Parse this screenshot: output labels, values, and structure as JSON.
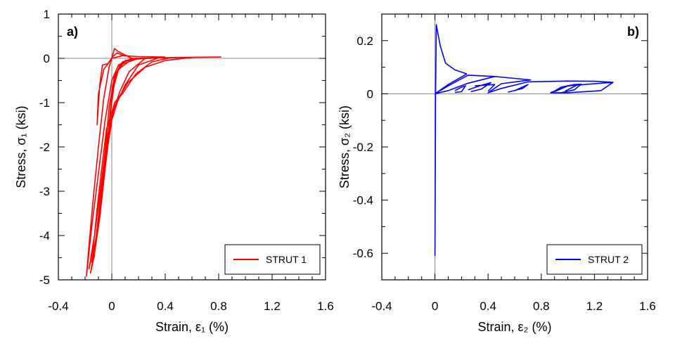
{
  "chart_data": [
    {
      "type": "line",
      "panel_label": "a)",
      "xlabel": "Strain, ε₁ (%)",
      "ylabel": "Stress, σ₁ (ksi)",
      "xlim": [
        -0.4,
        1.6
      ],
      "ylim": [
        -5,
        1
      ],
      "x_ticks": [
        -0.4,
        0,
        0.4,
        0.8,
        1.2,
        1.6
      ],
      "x_tick_labels": [
        "-0.4",
        "0",
        "0.4",
        "0.8",
        "1.2",
        "1.6"
      ],
      "y_ticks": [
        -5,
        -4,
        -3,
        -2,
        -1,
        0,
        1
      ],
      "y_tick_labels": [
        "-5",
        "-4",
        "-3",
        "-2",
        "-1",
        "0",
        "1"
      ],
      "zero_lines": true,
      "legend_position": "bottom-right",
      "series": [
        {
          "name": "STRUT 1",
          "color": "#ff0000",
          "paths": [
            [
              [
                0.82,
                0.03
              ],
              [
                0.5,
                0.02
              ],
              [
                0.3,
                0.01
              ],
              [
                0.15,
                0.0
              ],
              [
                0.05,
                0.15
              ],
              [
                0.02,
                0.22
              ],
              [
                -0.02,
                -0.2
              ],
              [
                -0.06,
                -0.9
              ],
              [
                -0.1,
                -2.0
              ],
              [
                -0.14,
                -3.2
              ],
              [
                -0.17,
                -4.2
              ],
              [
                -0.19,
                -4.92
              ],
              [
                -0.15,
                -3.8
              ],
              [
                -0.1,
                -2.6
              ],
              [
                -0.05,
                -1.4
              ],
              [
                0.0,
                -0.5
              ],
              [
                0.05,
                -0.15
              ],
              [
                0.15,
                0.0
              ],
              [
                0.3,
                0.01
              ]
            ],
            [
              [
                0.6,
                0.02
              ],
              [
                0.4,
                -0.05
              ],
              [
                0.25,
                -0.2
              ],
              [
                0.12,
                -0.55
              ],
              [
                0.05,
                -0.9
              ],
              [
                0.0,
                -1.2
              ],
              [
                -0.04,
                -1.6
              ],
              [
                -0.08,
                -2.6
              ],
              [
                -0.11,
                -3.4
              ],
              [
                -0.14,
                -4.3
              ],
              [
                -0.17,
                -4.75
              ],
              [
                -0.13,
                -4.0
              ],
              [
                -0.09,
                -3.1
              ],
              [
                -0.05,
                -2.1
              ],
              [
                -0.02,
                -1.1
              ],
              [
                0.02,
                -0.4
              ],
              [
                0.08,
                -0.08
              ],
              [
                0.2,
                0.0
              ]
            ],
            [
              [
                0.45,
                0.02
              ],
              [
                0.3,
                -0.08
              ],
              [
                0.18,
                -0.35
              ],
              [
                0.08,
                -0.8
              ],
              [
                0.02,
                -1.0
              ],
              [
                -0.03,
                -1.7
              ],
              [
                -0.07,
                -2.7
              ],
              [
                -0.1,
                -3.6
              ],
              [
                -0.13,
                -4.45
              ],
              [
                -0.16,
                -4.85
              ],
              [
                -0.12,
                -4.2
              ],
              [
                -0.08,
                -3.3
              ],
              [
                -0.04,
                -2.2
              ],
              [
                -0.01,
                -1.2
              ],
              [
                0.03,
                -0.35
              ],
              [
                0.1,
                -0.05
              ],
              [
                0.25,
                0.01
              ]
            ],
            [
              [
                0.35,
                0.01
              ],
              [
                0.2,
                -0.15
              ],
              [
                0.1,
                -0.6
              ],
              [
                0.04,
                -1.0
              ],
              [
                -0.01,
                -1.5
              ],
              [
                -0.05,
                -2.4
              ],
              [
                -0.09,
                -3.3
              ],
              [
                -0.12,
                -4.1
              ],
              [
                -0.15,
                -4.6
              ],
              [
                -0.11,
                -3.9
              ],
              [
                -0.07,
                -2.9
              ],
              [
                -0.03,
                -1.8
              ],
              [
                0.0,
                -0.8
              ],
              [
                0.05,
                -0.25
              ],
              [
                0.15,
                -0.02
              ],
              [
                0.4,
                0.02
              ]
            ],
            [
              [
                0.25,
                0.0
              ],
              [
                0.13,
                -0.3
              ],
              [
                0.06,
                -0.75
              ],
              [
                0.01,
                -1.2
              ],
              [
                -0.03,
                -2.0
              ],
              [
                -0.07,
                -3.0
              ],
              [
                -0.1,
                -3.8
              ],
              [
                -0.13,
                -4.4
              ],
              [
                -0.09,
                -3.6
              ],
              [
                -0.05,
                -2.5
              ],
              [
                -0.02,
                -1.5
              ],
              [
                0.01,
                -0.6
              ],
              [
                0.06,
                -0.15
              ],
              [
                0.2,
                0.0
              ]
            ],
            [
              [
                0.1,
                0.05
              ],
              [
                0.04,
                0.12
              ],
              [
                0.01,
                0.05
              ],
              [
                -0.03,
                -0.12
              ],
              [
                -0.07,
                -0.15
              ],
              [
                -0.09,
                -0.6
              ],
              [
                -0.11,
                -1.5
              ],
              [
                -0.1,
                -0.8
              ],
              [
                -0.06,
                -0.25
              ],
              [
                0.0,
                0.0
              ],
              [
                0.08,
                0.06
              ],
              [
                0.2,
                0.04
              ],
              [
                0.4,
                0.03
              ]
            ]
          ]
        }
      ],
      "legend": [
        {
          "label": "STRUT 1",
          "color": "#ff0000"
        }
      ]
    },
    {
      "type": "line",
      "panel_label": "b)",
      "xlabel": "Strain, ε₂ (%)",
      "ylabel": "Stress, σ₂ (ksi)",
      "xlim": [
        -0.4,
        1.6
      ],
      "ylim": [
        -0.7,
        0.3
      ],
      "x_ticks": [
        -0.4,
        0,
        0.4,
        0.8,
        1.2,
        1.6
      ],
      "x_tick_labels": [
        "-0.4",
        "0",
        "0.4",
        "0.8",
        "1.2",
        "1.6"
      ],
      "y_ticks": [
        -0.6,
        -0.4,
        -0.2,
        0,
        0.2
      ],
      "y_tick_labels": [
        "-0.6",
        "-0.4",
        "-0.2",
        "0",
        "0.2"
      ],
      "zero_lines": true,
      "legend_position": "bottom-right",
      "series": [
        {
          "name": "STRUT 2",
          "color": "#0000ff",
          "paths": [
            [
              [
                0.0,
                -0.61
              ],
              [
                0.005,
                0.0
              ],
              [
                0.01,
                0.26
              ],
              [
                0.04,
                0.18
              ],
              [
                0.08,
                0.115
              ],
              [
                0.15,
                0.09
              ],
              [
                0.24,
                0.075
              ]
            ],
            [
              [
                0.24,
                0.075
              ],
              [
                0.1,
                0.035
              ],
              [
                0.0,
                0.0
              ],
              [
                0.1,
                0.03
              ],
              [
                0.25,
                0.07
              ],
              [
                0.45,
                0.065
              ],
              [
                0.25,
                0.04
              ],
              [
                0.1,
                0.012
              ],
              [
                0.0,
                0.0
              ]
            ],
            [
              [
                0.45,
                0.065
              ],
              [
                0.6,
                0.058
              ],
              [
                0.72,
                0.052
              ],
              [
                0.5,
                0.038
              ],
              [
                0.4,
                0.004
              ],
              [
                0.5,
                0.02
              ],
              [
                0.7,
                0.045
              ],
              [
                1.0,
                0.048
              ],
              [
                1.2,
                0.047
              ],
              [
                1.34,
                0.043
              ],
              [
                1.25,
                0.012
              ],
              [
                1.0,
                0.004
              ],
              [
                0.87,
                0.004
              ],
              [
                1.0,
                0.03
              ],
              [
                1.34,
                0.043
              ]
            ],
            [
              [
                0.15,
                0.012
              ],
              [
                0.2,
                0.025
              ],
              [
                0.23,
                0.03
              ],
              [
                0.2,
                0.008
              ],
              [
                0.15,
                0.005
              ]
            ],
            [
              [
                0.25,
                0.015
              ],
              [
                0.35,
                0.032
              ],
              [
                0.42,
                0.042
              ],
              [
                0.35,
                0.018
              ],
              [
                0.27,
                0.008
              ]
            ],
            [
              [
                0.4,
                0.01
              ],
              [
                0.45,
                0.035
              ],
              [
                0.3,
                0.03
              ]
            ],
            [
              [
                0.6,
                0.012
              ],
              [
                0.7,
                0.035
              ],
              [
                0.66,
                0.02
              ],
              [
                0.55,
                0.006
              ]
            ],
            [
              [
                0.88,
                0.004
              ],
              [
                0.95,
                0.025
              ],
              [
                1.05,
                0.035
              ],
              [
                1.1,
                0.036
              ],
              [
                1.05,
                0.015
              ],
              [
                0.95,
                0.004
              ]
            ],
            [
              [
                0.9,
                0.008
              ],
              [
                1.0,
                0.03
              ],
              [
                1.07,
                0.033
              ],
              [
                0.98,
                0.01
              ]
            ]
          ]
        }
      ],
      "legend": [
        {
          "label": "STRUT 2",
          "color": "#0000ff"
        }
      ]
    }
  ]
}
